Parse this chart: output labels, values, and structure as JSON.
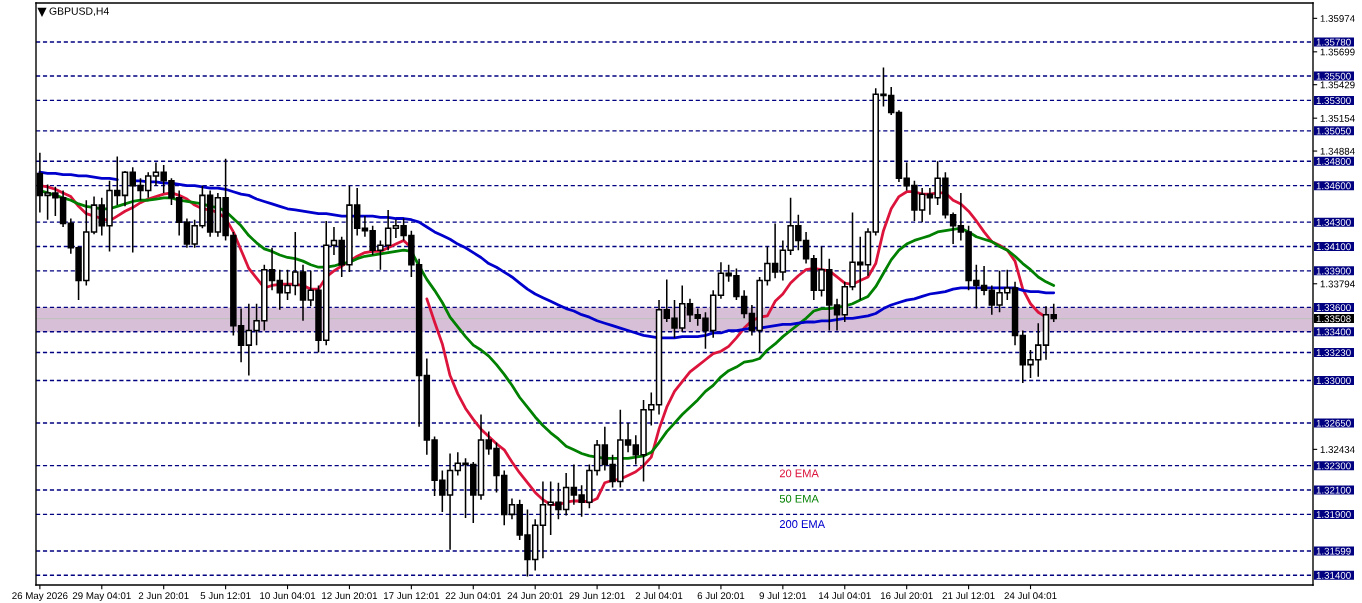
{
  "chart_data": {
    "type": "candlestick",
    "title": "GBPUSD,H4",
    "categories": [
      "26 May 2026",
      null,
      null,
      null,
      null,
      null,
      null,
      null,
      "29 May 04:01",
      null,
      null,
      null,
      null,
      null,
      null,
      null,
      "2 Jun 20:01",
      null,
      null,
      null,
      null,
      null,
      null,
      null,
      "5 Jun 12:01",
      null,
      null,
      null,
      null,
      null,
      null,
      null,
      "10 Jun 04:01",
      null,
      null,
      null,
      null,
      null,
      null,
      null,
      "12 Jun 20:01",
      null,
      null,
      null,
      null,
      null,
      null,
      null,
      "17 Jun 12:01",
      null,
      null,
      null,
      null,
      null,
      null,
      null,
      "22 Jun 04:01",
      null,
      null,
      null,
      null,
      null,
      null,
      null,
      "24 Jun 20:01",
      null,
      null,
      null,
      null,
      null,
      null,
      null,
      "29 Jun 12:01",
      null,
      null,
      null,
      null,
      null,
      null,
      null,
      "2 Jul 04:01",
      null,
      null,
      null,
      null,
      null,
      null,
      null,
      "6 Jul 20:01",
      null,
      null,
      null,
      null,
      null,
      null,
      null,
      "9 Jul 12:01",
      null,
      null,
      null,
      null,
      null,
      null,
      null,
      "14 Jul 04:01",
      null,
      null,
      null,
      null,
      null,
      null,
      null,
      "16 Jul 20:01",
      null,
      null,
      null,
      null,
      null,
      null,
      null,
      "21 Jul 12:01",
      null,
      null,
      null,
      null,
      null,
      null,
      null,
      "24 Jul 04:01",
      null,
      null,
      null,
      null,
      null,
      null,
      null,
      null,
      null,
      null,
      null,
      null,
      null,
      null,
      null,
      null,
      null,
      null,
      null,
      null,
      null,
      null,
      null,
      null,
      null,
      null,
      null,
      null,
      null,
      null,
      null,
      null,
      null,
      null,
      null,
      null
    ],
    "ohlc": [
      [
        1.347,
        1.3487,
        1.3438,
        1.3452
      ],
      [
        1.3452,
        1.3461,
        1.3432,
        1.3454
      ],
      [
        1.3454,
        1.3459,
        1.3435,
        1.345
      ],
      [
        1.345,
        1.3456,
        1.3426,
        1.3429
      ],
      [
        1.3429,
        1.3433,
        1.3404,
        1.3409
      ],
      [
        1.3409,
        1.341,
        1.3366,
        1.3382
      ],
      [
        1.3382,
        1.3448,
        1.3378,
        1.3422
      ],
      [
        1.3422,
        1.3451,
        1.342,
        1.3444
      ],
      [
        1.3444,
        1.345,
        1.3419,
        1.3427
      ],
      [
        1.3427,
        1.3464,
        1.3406,
        1.3456
      ],
      [
        1.3456,
        1.3484,
        1.3444,
        1.3452
      ],
      [
        1.3452,
        1.3472,
        1.3443,
        1.3471
      ],
      [
        1.3471,
        1.3475,
        1.3405,
        1.346
      ],
      [
        1.346,
        1.3466,
        1.3448,
        1.3456
      ],
      [
        1.3456,
        1.3471,
        1.345,
        1.3468
      ],
      [
        1.3468,
        1.3479,
        1.346,
        1.3471
      ],
      [
        1.3471,
        1.3477,
        1.3454,
        1.3464
      ],
      [
        1.3464,
        1.3466,
        1.3444,
        1.345
      ],
      [
        1.345,
        1.3456,
        1.3419,
        1.343
      ],
      [
        1.343,
        1.3433,
        1.3409,
        1.3412
      ],
      [
        1.3412,
        1.3432,
        1.3409,
        1.3427
      ],
      [
        1.3427,
        1.346,
        1.3425,
        1.3452
      ],
      [
        1.3452,
        1.3456,
        1.3418,
        1.3422
      ],
      [
        1.3422,
        1.3454,
        1.3418,
        1.345
      ],
      [
        1.345,
        1.3482,
        1.3415,
        1.3419
      ],
      [
        1.3419,
        1.3422,
        1.3337,
        1.3345
      ],
      [
        1.3345,
        1.3359,
        1.3315,
        1.3329
      ],
      [
        1.3329,
        1.3363,
        1.3304,
        1.3341
      ],
      [
        1.3341,
        1.3363,
        1.3329,
        1.3349
      ],
      [
        1.3349,
        1.3395,
        1.3341,
        1.3391
      ],
      [
        1.3391,
        1.3409,
        1.3374,
        1.3382
      ],
      [
        1.3382,
        1.3391,
        1.3358,
        1.3372
      ],
      [
        1.3372,
        1.3391,
        1.3366,
        1.3378
      ],
      [
        1.3378,
        1.3422,
        1.337,
        1.3389
      ],
      [
        1.3389,
        1.3395,
        1.3349,
        1.3366
      ],
      [
        1.3366,
        1.339,
        1.3361,
        1.3374
      ],
      [
        1.3374,
        1.3378,
        1.3323,
        1.3333
      ],
      [
        1.3333,
        1.3431,
        1.3329,
        1.3411
      ],
      [
        1.3411,
        1.3426,
        1.3403,
        1.3415
      ],
      [
        1.3415,
        1.3418,
        1.3385,
        1.3395
      ],
      [
        1.3395,
        1.346,
        1.3389,
        1.3444
      ],
      [
        1.3444,
        1.3458,
        1.3419,
        1.3425
      ],
      [
        1.3425,
        1.3435,
        1.3418,
        1.3423
      ],
      [
        1.3423,
        1.3427,
        1.3403,
        1.3407
      ],
      [
        1.3407,
        1.3415,
        1.3391,
        1.3411
      ],
      [
        1.3411,
        1.344,
        1.3407,
        1.3425
      ],
      [
        1.3425,
        1.3432,
        1.3417,
        1.3427
      ],
      [
        1.3427,
        1.3433,
        1.3415,
        1.3419
      ],
      [
        1.3419,
        1.3423,
        1.3385,
        1.3395
      ],
      [
        1.3395,
        1.34,
        1.3262,
        1.3304
      ],
      [
        1.3304,
        1.3318,
        1.3239,
        1.3251
      ],
      [
        1.3251,
        1.3254,
        1.3205,
        1.3218
      ],
      [
        1.3218,
        1.3226,
        1.3192,
        1.3206
      ],
      [
        1.3206,
        1.324,
        1.3161,
        1.3226
      ],
      [
        1.3226,
        1.3241,
        1.3222,
        1.3232
      ],
      [
        1.3232,
        1.3236,
        1.3187,
        1.3231
      ],
      [
        1.3231,
        1.3233,
        1.3183,
        1.3206
      ],
      [
        1.3206,
        1.3272,
        1.3202,
        1.3251
      ],
      [
        1.3251,
        1.3258,
        1.3239,
        1.3244
      ],
      [
        1.3244,
        1.3249,
        1.3208,
        1.3222
      ],
      [
        1.3222,
        1.3226,
        1.3181,
        1.319
      ],
      [
        1.319,
        1.3203,
        1.3186,
        1.3198
      ],
      [
        1.3198,
        1.3202,
        1.3169,
        1.3173
      ],
      [
        1.3173,
        1.3194,
        1.3139,
        1.3153
      ],
      [
        1.3153,
        1.3186,
        1.3144,
        1.3181
      ],
      [
        1.3181,
        1.3217,
        1.3154,
        1.3198
      ],
      [
        1.3198,
        1.3217,
        1.3173,
        1.32
      ],
      [
        1.32,
        1.3216,
        1.3186,
        1.3194
      ],
      [
        1.3194,
        1.3224,
        1.3189,
        1.3212
      ],
      [
        1.3212,
        1.3231,
        1.3198,
        1.3206
      ],
      [
        1.3206,
        1.3214,
        1.3188,
        1.32
      ],
      [
        1.32,
        1.3231,
        1.3195,
        1.3226
      ],
      [
        1.3226,
        1.3251,
        1.3222,
        1.3247
      ],
      [
        1.3247,
        1.3262,
        1.3226,
        1.3231
      ],
      [
        1.3231,
        1.3239,
        1.3212,
        1.3217
      ],
      [
        1.3217,
        1.3276,
        1.3212,
        1.3251
      ],
      [
        1.3251,
        1.3265,
        1.3241,
        1.3247
      ],
      [
        1.3247,
        1.3255,
        1.3231,
        1.3239
      ],
      [
        1.3239,
        1.3284,
        1.3217,
        1.3276
      ],
      [
        1.3276,
        1.329,
        1.3263,
        1.328
      ],
      [
        1.328,
        1.3366,
        1.3272,
        1.3358
      ],
      [
        1.3358,
        1.3383,
        1.3348,
        1.3351
      ],
      [
        1.3351,
        1.3366,
        1.3335,
        1.3343
      ],
      [
        1.3343,
        1.3378,
        1.334,
        1.3363
      ],
      [
        1.3363,
        1.3367,
        1.3348,
        1.3354
      ],
      [
        1.3354,
        1.3359,
        1.3345,
        1.3351
      ],
      [
        1.3351,
        1.3356,
        1.3326,
        1.3341
      ],
      [
        1.3341,
        1.3374,
        1.3335,
        1.337
      ],
      [
        1.337,
        1.3397,
        1.3367,
        1.3388
      ],
      [
        1.3388,
        1.3395,
        1.3381,
        1.3386
      ],
      [
        1.3386,
        1.3392,
        1.3366,
        1.3369
      ],
      [
        1.3369,
        1.3374,
        1.3351,
        1.3355
      ],
      [
        1.3355,
        1.3362,
        1.3337,
        1.3341
      ],
      [
        1.3341,
        1.3385,
        1.3323,
        1.3382
      ],
      [
        1.3382,
        1.341,
        1.3378,
        1.3396
      ],
      [
        1.3396,
        1.3429,
        1.3384,
        1.3389
      ],
      [
        1.3389,
        1.3415,
        1.3382,
        1.3407
      ],
      [
        1.3407,
        1.345,
        1.3403,
        1.3427
      ],
      [
        1.3427,
        1.3436,
        1.3407,
        1.3415
      ],
      [
        1.3415,
        1.3422,
        1.3396,
        1.34
      ],
      [
        1.34,
        1.3403,
        1.3366,
        1.3374
      ],
      [
        1.3374,
        1.341,
        1.3369,
        1.3391
      ],
      [
        1.3391,
        1.34,
        1.3341,
        1.3362
      ],
      [
        1.3362,
        1.3367,
        1.3341,
        1.3354
      ],
      [
        1.3354,
        1.3381,
        1.3348,
        1.3377
      ],
      [
        1.3377,
        1.3438,
        1.3374,
        1.3397
      ],
      [
        1.3397,
        1.3418,
        1.3366,
        1.3395
      ],
      [
        1.3395,
        1.3425,
        1.3386,
        1.3422
      ],
      [
        1.3422,
        1.354,
        1.3419,
        1.3535
      ],
      [
        1.3535,
        1.3557,
        1.3525,
        1.3534
      ],
      [
        1.3534,
        1.3541,
        1.3518,
        1.352
      ],
      [
        1.352,
        1.3522,
        1.3463,
        1.3466
      ],
      [
        1.3466,
        1.3479,
        1.3456,
        1.346
      ],
      [
        1.346,
        1.3464,
        1.3431,
        1.344
      ],
      [
        1.344,
        1.3458,
        1.343,
        1.3453
      ],
      [
        1.3453,
        1.3458,
        1.3436,
        1.345
      ],
      [
        1.345,
        1.348,
        1.3444,
        1.3466
      ],
      [
        1.3466,
        1.3471,
        1.3433,
        1.3436
      ],
      [
        1.3436,
        1.3438,
        1.3412,
        1.3427
      ],
      [
        1.3427,
        1.3454,
        1.3415,
        1.3422
      ],
      [
        1.3422,
        1.3427,
        1.3374,
        1.3382
      ],
      [
        1.3382,
        1.3395,
        1.3359,
        1.3378
      ],
      [
        1.3378,
        1.3394,
        1.337,
        1.3374
      ],
      [
        1.3374,
        1.3378,
        1.3354,
        1.3362
      ],
      [
        1.3362,
        1.339,
        1.3356,
        1.3372
      ],
      [
        1.3372,
        1.3391,
        1.3366,
        1.3376
      ],
      [
        1.3376,
        1.3381,
        1.3329,
        1.3337
      ],
      [
        1.3337,
        1.3341,
        1.3298,
        1.3313
      ],
      [
        1.3313,
        1.3325,
        1.3302,
        1.3317
      ],
      [
        1.3317,
        1.3347,
        1.3303,
        1.3329
      ],
      [
        1.3329,
        1.3361,
        1.3317,
        1.3354
      ],
      [
        1.3354,
        1.3363,
        1.3348,
        1.33508
      ],
      null,
      null,
      null,
      null,
      null,
      null,
      null,
      null,
      null,
      null,
      null,
      null,
      null,
      null,
      null,
      null,
      null,
      null,
      null,
      null,
      null,
      null,
      null,
      null,
      null,
      null,
      null,
      null,
      null,
      null,
      null,
      null,
      null
    ],
    "series": [
      {
        "name": "20 EMA",
        "type": "line",
        "color": "#dc143c",
        "values": [
          1.346,
          1.3459,
          1.3457,
          1.3454,
          1.3451,
          1.3443,
          1.3437,
          1.3435,
          1.3433,
          1.3431,
          1.3435,
          1.3439,
          1.3442,
          1.3446,
          1.3449,
          1.3451,
          1.3453,
          1.3454,
          1.3452,
          1.3449,
          1.3444,
          1.3441,
          1.344,
          1.3438,
          1.3433,
          1.3422,
          1.3407,
          1.3392,
          1.3384,
          1.3376,
          1.3378,
          1.3379,
          1.3379,
          1.3379,
          1.3378,
          1.3375,
          1.3375,
          1.3385,
          1.339,
          1.3394,
          1.3398,
          1.3402,
          1.3405,
          1.3406,
          1.3406,
          1.3409,
          1.3412,
          1.3415,
          1.3409,
          null,
          1.3367,
          1.3348,
          1.333,
          1.3304,
          1.3289,
          1.3277,
          1.3268,
          1.326,
          1.3254,
          1.3248,
          1.3243,
          1.3233,
          1.3224,
          1.3216,
          1.3208,
          1.3202,
          1.3198,
          1.3198,
          1.32,
          1.3201,
          1.3201,
          1.32,
          1.3203,
          1.3216,
          1.3218,
          1.3219,
          1.3222,
          1.3225,
          1.323,
          1.3237,
          1.326,
          1.3278,
          1.3291,
          1.3299,
          1.3307,
          1.3312,
          1.3317,
          1.3322,
          1.3324,
          1.3328,
          1.3335,
          1.3343,
          1.3349,
          1.3352,
          1.3353,
          1.3365,
          1.3371,
          1.338,
          1.3386,
          1.3391,
          1.3392,
          1.3391,
          1.339,
          1.3385,
          1.338,
          1.3379,
          1.3382,
          1.3385,
          1.3396,
          1.3423,
          1.3441,
          1.3451,
          1.3455,
          1.3455,
          1.3453,
          1.3453,
          1.3454,
          1.3454,
          1.3448,
          1.3445,
          1.3439,
          1.3431,
          1.3422,
          1.3414,
          1.3411,
          1.3407,
          1.3398,
          1.3375,
          1.3363,
          1.3356,
          1.3352,
          null,
          null,
          null,
          null,
          null,
          null,
          null,
          null,
          null,
          null,
          null,
          null,
          null,
          null,
          null,
          null,
          null,
          null,
          null,
          null,
          null,
          null,
          null,
          null,
          null,
          null,
          null,
          null,
          null,
          null,
          null,
          null,
          null,
          null
        ]
      },
      {
        "name": "50 EMA",
        "type": "line",
        "color": "#008000",
        "values": [
          1.3456,
          1.3454,
          1.3452,
          1.345,
          1.3448,
          1.3445,
          1.3443,
          1.3442,
          1.3441,
          1.3441,
          1.3443,
          1.3445,
          1.3447,
          1.3448,
          1.3448,
          1.3449,
          1.345,
          1.345,
          1.3448,
          1.3447,
          1.3446,
          1.3445,
          1.3443,
          1.3442,
          1.3439,
          1.3433,
          1.3427,
          1.3419,
          1.3413,
          1.3408,
          1.3406,
          1.3403,
          1.3401,
          1.34,
          1.3398,
          1.3395,
          1.3393,
          1.3393,
          1.3394,
          1.3396,
          1.3397,
          1.34,
          1.3402,
          1.3403,
          1.3404,
          1.3405,
          1.3406,
          1.3407,
          1.3406,
          1.3394,
          1.3383,
          1.3374,
          1.3364,
          1.3352,
          1.3344,
          1.3336,
          1.3329,
          1.3325,
          1.332,
          1.3313,
          1.3305,
          1.3296,
          1.3286,
          1.3278,
          1.327,
          1.3263,
          1.3257,
          1.3252,
          1.3246,
          1.3243,
          1.324,
          1.3238,
          1.3237,
          1.3236,
          1.3236,
          1.3236,
          1.3236,
          1.3237,
          1.3238,
          1.3241,
          1.3249,
          1.3258,
          1.3265,
          1.3272,
          1.3278,
          1.3284,
          1.3291,
          1.3296,
          1.3303,
          1.3308,
          1.3311,
          1.3315,
          1.3316,
          1.3318,
          1.3325,
          1.333,
          1.3336,
          1.3341,
          1.3346,
          1.3351,
          1.3357,
          1.3359,
          1.3359,
          1.336,
          1.3361,
          1.3363,
          1.3366,
          1.3369,
          1.3377,
          1.3388,
          1.3399,
          1.3407,
          1.3412,
          1.3415,
          1.3417,
          1.3419,
          1.3422,
          1.3423,
          1.3424,
          1.3425,
          1.3422,
          1.3418,
          1.3416,
          1.3414,
          1.341,
          1.3407,
          1.3402,
          1.3396,
          1.3391,
          1.3385,
          1.3381,
          1.3378,
          null,
          null,
          null,
          null,
          null,
          null,
          null,
          null,
          null,
          null,
          null,
          null,
          null,
          null,
          null,
          null,
          null,
          null,
          null,
          null,
          null,
          null,
          null,
          null,
          null,
          null,
          null,
          null,
          null,
          null,
          null,
          null,
          null
        ]
      },
      {
        "name": "200 EMA",
        "type": "line",
        "color": "#0000cd",
        "values": [
          1.3471,
          1.347,
          1.347,
          1.3469,
          1.3469,
          1.3468,
          1.3468,
          1.3467,
          1.3466,
          1.3466,
          1.3465,
          null,
          1.3464,
          1.3464,
          1.3463,
          1.3463,
          1.3462,
          1.3462,
          1.3461,
          1.346,
          1.346,
          1.3459,
          1.3458,
          1.3458,
          1.3457,
          1.3455,
          1.3453,
          1.3452,
          1.3449,
          1.3447,
          1.3445,
          1.3443,
          1.3441,
          1.344,
          1.3439,
          1.3438,
          1.3437,
          1.3437,
          1.3436,
          1.3435,
          1.3435,
          1.3435,
          1.3435,
          1.3435,
          1.3434,
          1.3434,
          1.3433,
          1.3433,
          1.3432,
          1.343,
          1.3426,
          1.3422,
          1.3419,
          1.3416,
          1.3412,
          1.3409,
          1.3405,
          1.3401,
          1.3396,
          1.3393,
          1.3389,
          1.3385,
          1.338,
          1.3375,
          1.3371,
          1.3368,
          1.3365,
          1.3362,
          1.3359,
          1.3357,
          1.3354,
          1.3352,
          1.3349,
          1.3347,
          1.3345,
          1.3343,
          1.3341,
          1.3339,
          1.3337,
          1.3336,
          1.3335,
          1.3335,
          1.3335,
          1.3336,
          1.3336,
          1.3336,
          1.3337,
          1.3339,
          1.3339,
          1.3341,
          1.3341,
          1.3342,
          1.3343,
          1.3343,
          1.3344,
          1.3345,
          1.3346,
          1.3346,
          1.3347,
          1.3348,
          1.3348,
          1.3349,
          1.3349,
          1.335,
          1.3351,
          1.3351,
          1.3352,
          1.3353,
          1.3355,
          1.3359,
          1.3362,
          1.3364,
          1.3366,
          1.3367,
          1.3369,
          1.3371,
          1.3372,
          1.3373,
          1.3375,
          1.3376,
          1.3376,
          1.3376,
          1.3376,
          1.3376,
          1.3376,
          1.3376,
          1.3376,
          1.3374,
          1.3373,
          1.3373,
          1.3372,
          1.3372,
          null,
          null,
          null,
          null,
          null,
          null,
          null,
          null,
          null,
          null,
          null,
          null,
          null,
          null,
          null,
          null,
          null,
          null,
          null,
          null,
          null,
          null,
          null,
          null,
          null,
          null,
          null,
          null,
          null,
          null,
          null,
          null,
          null
        ]
      }
    ],
    "ylim": [
      1.3132,
      1.361
    ],
    "yticks": [
      1.35974,
      1.35699,
      1.35429,
      1.35154,
      1.34884,
      1.33794,
      1.32434
    ],
    "ref_lines": [
      {
        "axis": "y",
        "value": 1.3578,
        "label": "1.35780",
        "color": "#000080",
        "line_style": "dashed"
      },
      {
        "axis": "y",
        "value": 1.355,
        "label": "1.35500",
        "color": "#000080",
        "line_style": "dashed"
      },
      {
        "axis": "y",
        "value": 1.353,
        "label": "1.35300",
        "color": "#000080",
        "line_style": "dashed"
      },
      {
        "axis": "y",
        "value": 1.3505,
        "label": "1.35050",
        "color": "#000080",
        "line_style": "dashed"
      },
      {
        "axis": "y",
        "value": 1.348,
        "label": "1.34800",
        "color": "#000080",
        "line_style": "dashed"
      },
      {
        "axis": "y",
        "value": 1.346,
        "label": "1.34600",
        "color": "#000080",
        "line_style": "dashed"
      },
      {
        "axis": "y",
        "value": 1.343,
        "label": "1.34300",
        "color": "#000080",
        "line_style": "dashed"
      },
      {
        "axis": "y",
        "value": 1.341,
        "label": "1.34100",
        "color": "#000080",
        "line_style": "dashed"
      },
      {
        "axis": "y",
        "value": 1.339,
        "label": "1.33900",
        "color": "#000080",
        "line_style": "dashed"
      },
      {
        "axis": "y",
        "value": 1.336,
        "label": "1.33600",
        "color": "#000080",
        "line_style": "dashed"
      },
      {
        "axis": "y",
        "value": 1.33508,
        "label": "1.33508",
        "color": "#c0c0c0",
        "line_style": "solid"
      },
      {
        "axis": "y",
        "value": 1.334,
        "label": "1.33400",
        "color": "#000080",
        "line_style": "dashed"
      },
      {
        "axis": "y",
        "value": 1.3323,
        "label": "1.33230",
        "color": "#000080",
        "line_style": "dashed"
      },
      {
        "axis": "y",
        "value": 1.33,
        "label": "1.33000",
        "color": "#000080",
        "line_style": "dashed"
      },
      {
        "axis": "y",
        "value": 1.3265,
        "label": "1.32650",
        "color": "#000080",
        "line_style": "dashed"
      },
      {
        "axis": "y",
        "value": 1.323,
        "label": "1.32300",
        "color": "#000080",
        "line_style": "dashed"
      },
      {
        "axis": "y",
        "value": 1.321,
        "label": "1.32100",
        "color": "#000080",
        "line_style": "dashed"
      },
      {
        "axis": "y",
        "value": 1.319,
        "label": "1.31900",
        "color": "#000080",
        "line_style": "dashed"
      },
      {
        "axis": "y",
        "value": 1.31599,
        "label": "1.31599",
        "color": "#000080",
        "line_style": "dashed"
      },
      {
        "axis": "y",
        "value": 1.314,
        "label": "1.31400",
        "color": "#000080",
        "line_style": "dashed"
      }
    ],
    "bands": [
      {
        "axis": "y",
        "from": 1.334,
        "to": 1.336,
        "color": "#d8bfd8"
      }
    ],
    "legend": "bottom"
  }
}
